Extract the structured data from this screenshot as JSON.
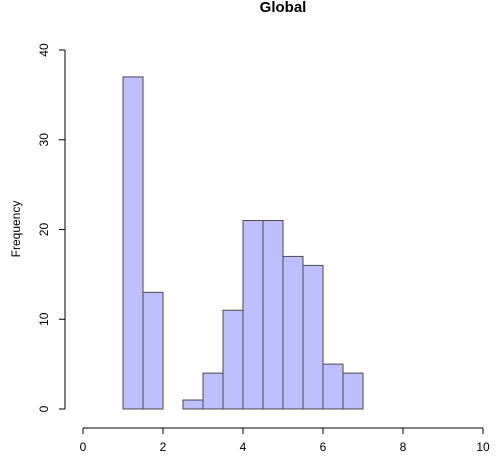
{
  "chart_data": {
    "type": "bar",
    "title": "Global",
    "xlabel": "",
    "ylabel": "Frequency",
    "xlim": [
      0,
      10
    ],
    "ylim": [
      0,
      40
    ],
    "x_ticks": [
      0,
      2,
      4,
      6,
      8,
      10
    ],
    "y_ticks": [
      0,
      10,
      20,
      30,
      40
    ],
    "bin_edges": [
      1.0,
      1.5,
      2.0,
      2.5,
      3.0,
      3.5,
      4.0,
      4.5,
      5.0,
      5.5,
      6.0,
      6.5,
      7.0
    ],
    "values": [
      37,
      13,
      0,
      1,
      4,
      11,
      21,
      21,
      17,
      16,
      5,
      4
    ],
    "bar_color": "#bfbfff",
    "bar_border_color": "#4a4a4a",
    "grid": false,
    "legend": "none"
  }
}
